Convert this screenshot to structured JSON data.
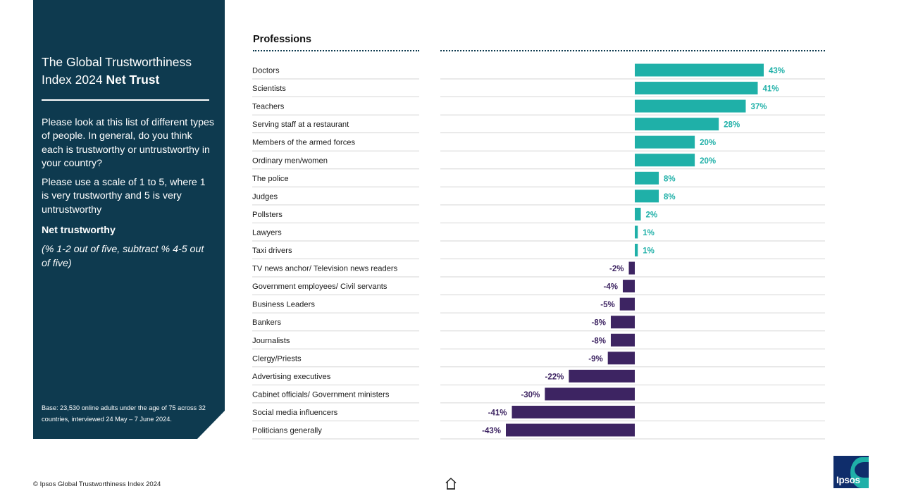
{
  "panel": {
    "title_regular": "The Global Trustworthiness Index 2024 ",
    "title_bold": "Net Trust",
    "question_1": "Please look at this list of different types of people. In general, do you think each is trustworthy or untrustworthy in your country?",
    "question_2": "Please use a scale of 1 to 5, where 1 is very trustworthy and 5 is very untrustworthy",
    "net_label": "Net trustworthy",
    "net_note": "(% 1-2 out of five, subtract % 4-5 out of five)",
    "base": "Base: 23,530 online adults under the age of 75 across 32 countries, interviewed 24 May – 7 June 2024."
  },
  "footer": {
    "copyright": "© Ipsos Global Trustworthiness Index 2024"
  },
  "logo": {
    "text": "Ipsos"
  },
  "icons": {
    "home": "home-icon",
    "logo": "ipsos-logo"
  },
  "colors": {
    "panel": "#0e3a4f",
    "positive": "#1fb0a8",
    "negative": "#3d2462",
    "positive_label": "#1fb0a8",
    "negative_label": "#3d2462"
  },
  "chart_data": {
    "type": "bar",
    "orientation": "horizontal",
    "title": "Professions",
    "unit": "%",
    "xlim": [
      -43,
      43
    ],
    "grid": false,
    "legend": "none",
    "categories": [
      "Doctors",
      "Scientists",
      "Teachers",
      "Serving staff at a restaurant",
      "Members of the armed forces",
      "Ordinary men/women",
      "The police",
      "Judges",
      "Pollsters",
      "Lawyers",
      "Taxi drivers",
      "TV news anchor/ Television news readers",
      "Government employees/ Civil servants",
      "Business Leaders",
      "Bankers",
      "Journalists",
      "Clergy/Priests",
      "Advertising executives",
      "Cabinet officials/ Government ministers",
      "Social media influencers",
      "Politicians generally"
    ],
    "values": [
      43,
      41,
      37,
      28,
      20,
      20,
      8,
      8,
      2,
      1,
      1,
      -2,
      -4,
      -5,
      -8,
      -8,
      -9,
      -22,
      -30,
      -41,
      -43
    ],
    "data_labels": [
      "43%",
      "41%",
      "37%",
      "28%",
      "20%",
      "20%",
      "8%",
      "8%",
      "2%",
      "1%",
      "1%",
      "-2%",
      "-4%",
      "-5%",
      "-8%",
      "-8%",
      "-9%",
      "-22%",
      "-30%",
      "-41%",
      "-43%"
    ]
  }
}
